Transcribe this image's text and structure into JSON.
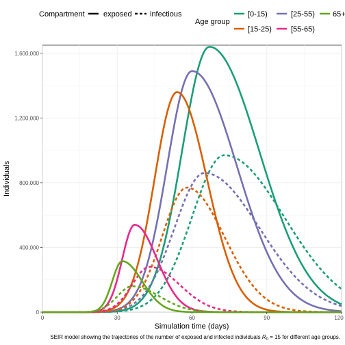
{
  "chart_data": {
    "type": "line",
    "xlabel": "Simulation time (days)",
    "ylabel": "Individuals",
    "xlim": [
      0,
      120
    ],
    "ylim": [
      0,
      1650000
    ],
    "x_ticks": [
      0,
      30,
      60,
      90,
      120
    ],
    "x_tick_labels": [
      "0",
      "30",
      "60",
      "90",
      "120"
    ],
    "y_ticks": [
      0,
      400000,
      800000,
      1200000,
      1600000
    ],
    "y_tick_labels": [
      "0",
      "400,000",
      "800,000",
      "1,200,000",
      "1,600,000"
    ],
    "grid": true,
    "legend_position": "top",
    "caption_pre": "SEIR model showing the trajectories of the number of exposed and infected individuals ",
    "caption_symbol": "R",
    "caption_sub": "0",
    "caption_post": " = 15 for different age groups.",
    "legend": {
      "compartment_title": "Compartment",
      "compartments": [
        {
          "label": "exposed",
          "dash": "solid"
        },
        {
          "label": "infectious",
          "dash": "dashed"
        }
      ],
      "age_title": "Age group",
      "age_groups": [
        {
          "label": "[0-15)",
          "color": "#1B9E77"
        },
        {
          "label": "[25-55)",
          "color": "#7570B3"
        },
        {
          "label": "65+",
          "color": "#66A61E"
        },
        {
          "label": "[15-25)",
          "color": "#D95F02"
        },
        {
          "label": "[55-65)",
          "color": "#E7298A"
        }
      ]
    },
    "series": [
      {
        "age_group": "[0-15)",
        "compartment": "exposed",
        "color": "#1B9E77",
        "peak_day": 67,
        "peak": 1640000,
        "width_rise": 11,
        "width_fall": 20
      },
      {
        "age_group": "[0-15)",
        "compartment": "infectious",
        "color": "#1B9E77",
        "peak_day": 73,
        "peak": 970000,
        "width_rise": 13,
        "width_fall": 24
      },
      {
        "age_group": "[25-55)",
        "compartment": "exposed",
        "color": "#7570B3",
        "peak_day": 60,
        "peak": 1490000,
        "width_rise": 10,
        "width_fall": 18
      },
      {
        "age_group": "[25-55)",
        "compartment": "infectious",
        "color": "#7570B3",
        "peak_day": 65,
        "peak": 860000,
        "width_rise": 12,
        "width_fall": 22
      },
      {
        "age_group": "[15-25)",
        "compartment": "exposed",
        "color": "#D95F02",
        "peak_day": 54,
        "peak": 1360000,
        "width_rise": 9,
        "width_fall": 12
      },
      {
        "age_group": "[15-25)",
        "compartment": "infectious",
        "color": "#D95F02",
        "peak_day": 58,
        "peak": 770000,
        "width_rise": 10,
        "width_fall": 15
      },
      {
        "age_group": "[55-65)",
        "compartment": "exposed",
        "color": "#E7298A",
        "peak_day": 37,
        "peak": 540000,
        "width_rise": 5,
        "width_fall": 9
      },
      {
        "age_group": "[55-65)",
        "compartment": "infectious",
        "color": "#E7298A",
        "peak_day": 43,
        "peak": 280000,
        "width_rise": 7,
        "width_fall": 12
      },
      {
        "age_group": "65+",
        "compartment": "exposed",
        "color": "#66A61E",
        "peak_day": 32,
        "peak": 315000,
        "width_rise": 4,
        "width_fall": 8
      },
      {
        "age_group": "65+",
        "compartment": "infectious",
        "color": "#66A61E",
        "peak_day": 36,
        "peak": 160000,
        "width_rise": 6,
        "width_fall": 11
      }
    ]
  }
}
